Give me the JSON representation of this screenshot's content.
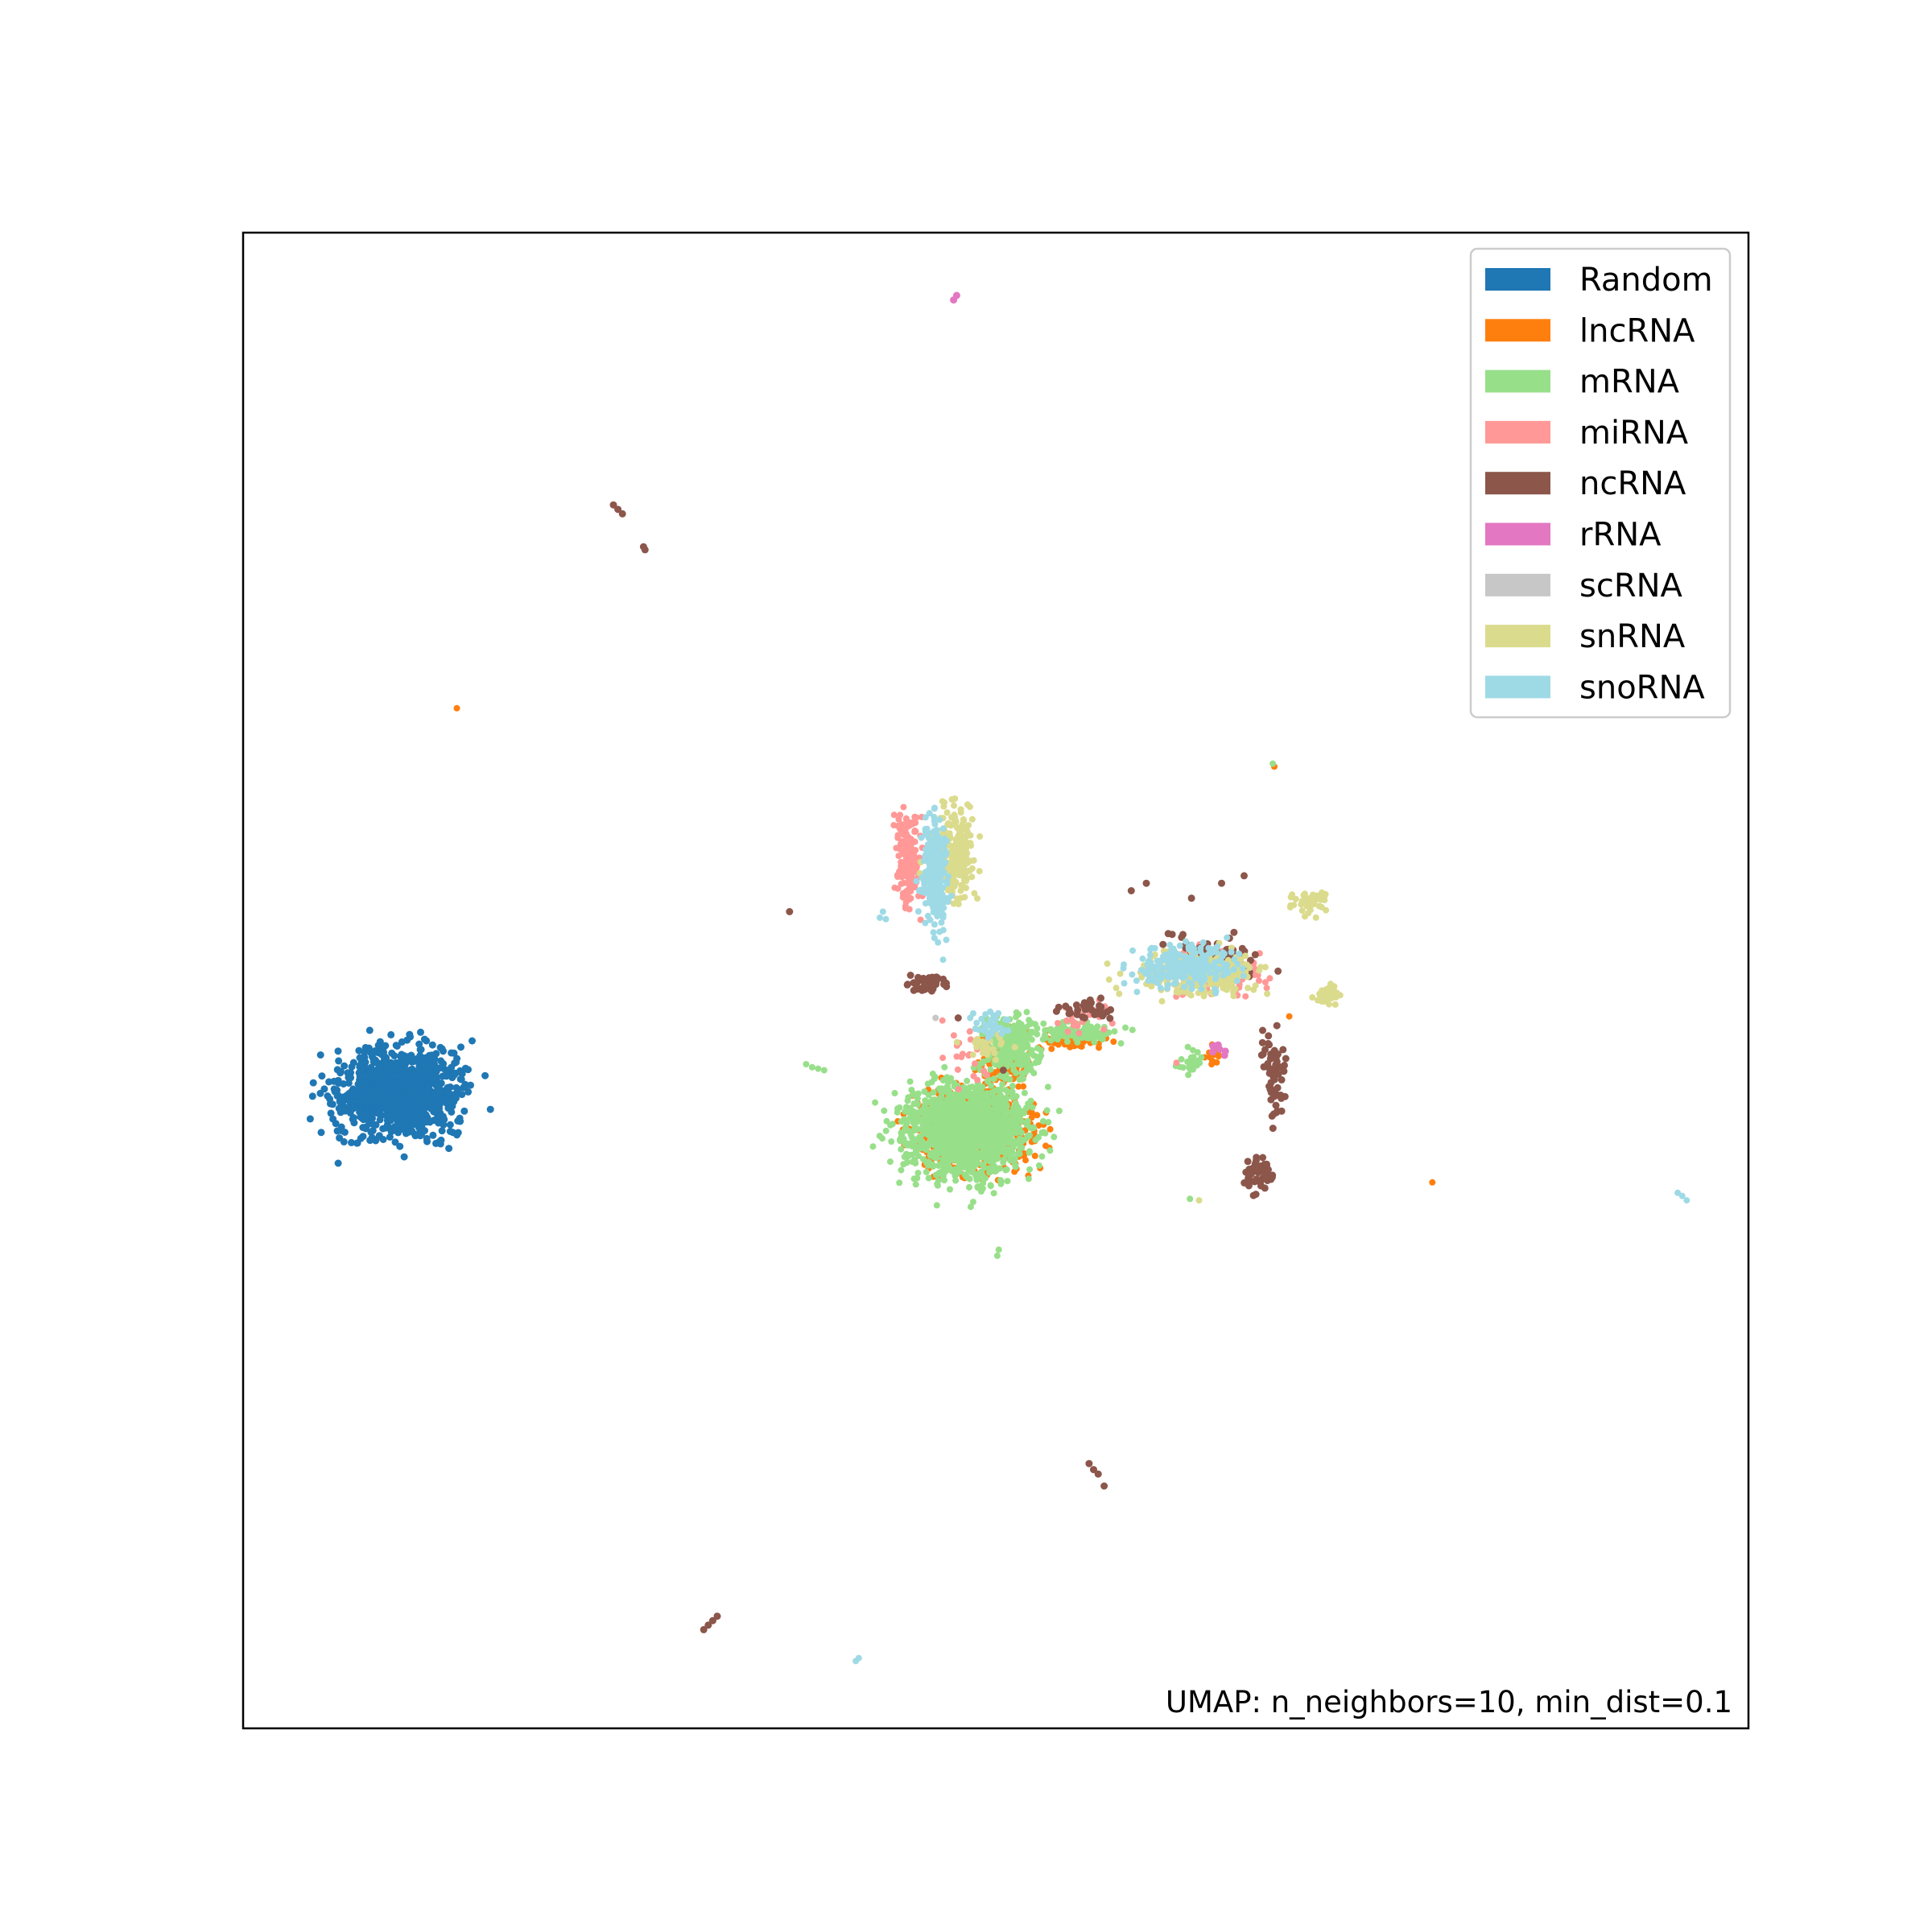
{
  "chart_data": {
    "type": "scatter",
    "title": "",
    "xlabel": "",
    "ylabel": "",
    "xlim": [
      0,
      100
    ],
    "ylim": [
      0,
      100
    ],
    "ticks": "none",
    "grid": false,
    "legend_placement": "top-right",
    "annotation": "UMAP: n_neighbors=10, min_dist=0.1",
    "series": [
      {
        "name": "Random",
        "color": "#1f77b4",
        "marker_radius": 4.5,
        "blobs": [
          [
            10.5,
            42.5,
            5.2,
            3.6,
            1100
          ]
        ],
        "points": []
      },
      {
        "name": "lncRNA",
        "color": "#ff7f0e",
        "marker_radius": 4,
        "blobs": [
          [
            48.5,
            40.0,
            4.6,
            3.4,
            750
          ],
          [
            50.5,
            44.5,
            2.2,
            2.5,
            120
          ],
          [
            55.0,
            46.0,
            2.8,
            0.8,
            60
          ],
          [
            64.5,
            45.0,
            0.8,
            1.2,
            15
          ]
        ],
        "points": [
          [
            14.2,
            68.2
          ],
          [
            79.0,
            36.5
          ],
          [
            68.5,
            64.3
          ],
          [
            69.5,
            47.6
          ]
        ]
      },
      {
        "name": "mRNA",
        "color": "#98df8a",
        "marker_radius": 4,
        "blobs": [
          [
            48.0,
            40.0,
            5.2,
            3.8,
            1500
          ],
          [
            51.0,
            45.5,
            2.4,
            2.6,
            200
          ],
          [
            55.5,
            46.5,
            3.2,
            0.9,
            120
          ],
          [
            63.0,
            44.5,
            1.2,
            1.2,
            25
          ]
        ],
        "points": [
          [
            37.4,
            44.4
          ],
          [
            37.8,
            44.2
          ],
          [
            38.2,
            44.1
          ],
          [
            38.6,
            44.0
          ],
          [
            50.2,
            32.0
          ],
          [
            50.1,
            31.6
          ],
          [
            62.9,
            35.4
          ],
          [
            68.4,
            64.5
          ]
        ]
      },
      {
        "name": "miRNA",
        "color": "#ff9896",
        "marker_radius": 4,
        "blobs": [
          [
            44.2,
            58.0,
            1.0,
            4.2,
            160
          ],
          [
            64.5,
            50.5,
            3.8,
            2.2,
            110
          ],
          [
            55.5,
            47.5,
            2.5,
            1.2,
            30
          ],
          [
            48.0,
            45.0,
            2.0,
            2.0,
            20
          ]
        ],
        "points": [
          [
            62.0,
            44.5
          ],
          [
            68.0,
            49.5
          ]
        ]
      },
      {
        "name": "ncRNA",
        "color": "#8c564b",
        "marker_radius": 4.5,
        "blobs": [
          [
            45.5,
            49.8,
            2.0,
            0.6,
            45
          ],
          [
            64.5,
            51.5,
            3.6,
            1.8,
            90
          ],
          [
            68.5,
            43.5,
            1.0,
            3.5,
            60
          ],
          [
            67.5,
            37.0,
            1.3,
            1.8,
            45
          ],
          [
            56.0,
            48.0,
            2.2,
            0.9,
            35
          ]
        ],
        "points": [
          [
            24.6,
            81.8
          ],
          [
            24.9,
            81.5
          ],
          [
            25.2,
            81.2
          ],
          [
            26.6,
            79.0
          ],
          [
            26.7,
            78.8
          ],
          [
            36.3,
            54.6
          ],
          [
            56.2,
            17.7
          ],
          [
            56.5,
            17.3
          ],
          [
            56.8,
            17.0
          ],
          [
            57.2,
            16.2
          ],
          [
            30.6,
            6.6
          ],
          [
            30.9,
            6.9
          ],
          [
            31.2,
            7.2
          ],
          [
            31.5,
            7.5
          ],
          [
            47.5,
            47.5
          ],
          [
            50.5,
            44.0
          ],
          [
            59.0,
            56.0
          ],
          [
            60.0,
            56.5
          ],
          [
            65.0,
            56.5
          ],
          [
            66.5,
            57.0
          ],
          [
            63.0,
            55.5
          ]
        ]
      },
      {
        "name": "rRNA",
        "color": "#e377c2",
        "marker_radius": 4.5,
        "blobs": [
          [
            64.5,
            45.5,
            0.8,
            0.4,
            8
          ]
        ],
        "points": [
          [
            47.2,
            95.5
          ],
          [
            47.4,
            95.8
          ],
          [
            65.2,
            45.0
          ]
        ]
      },
      {
        "name": "scRNA",
        "color": "#c7c7c7",
        "marker_radius": 4,
        "blobs": [],
        "points": [
          [
            46.0,
            47.5
          ]
        ]
      },
      {
        "name": "snRNA",
        "color": "#dbdb8d",
        "marker_radius": 4,
        "blobs": [
          [
            47.2,
            58.5,
            1.8,
            4.5,
            260
          ],
          [
            63.5,
            50.5,
            5.0,
            1.7,
            320
          ],
          [
            71.0,
            55.2,
            1.4,
            0.9,
            50
          ],
          [
            72.0,
            49.0,
            0.9,
            0.8,
            45
          ],
          [
            49.5,
            45.5,
            1.8,
            1.0,
            30
          ]
        ],
        "points": [
          [
            63.5,
            35.3
          ],
          [
            58.0,
            49.5
          ],
          [
            60.0,
            50.5
          ]
        ]
      },
      {
        "name": "snoRNA",
        "color": "#9edae5",
        "marker_radius": 4,
        "blobs": [
          [
            46.0,
            57.0,
            1.1,
            4.5,
            260
          ],
          [
            62.5,
            51.0,
            4.2,
            1.8,
            260
          ],
          [
            49.8,
            47.0,
            1.4,
            1.0,
            35
          ]
        ],
        "points": [
          [
            42.3,
            54.2
          ],
          [
            42.5,
            54.6
          ],
          [
            42.7,
            54.1
          ],
          [
            48.3,
            47.5
          ],
          [
            48.5,
            47.8
          ],
          [
            95.3,
            35.8
          ],
          [
            95.6,
            35.6
          ],
          [
            95.9,
            35.3
          ],
          [
            40.7,
            4.5
          ],
          [
            40.9,
            4.7
          ]
        ]
      }
    ]
  }
}
